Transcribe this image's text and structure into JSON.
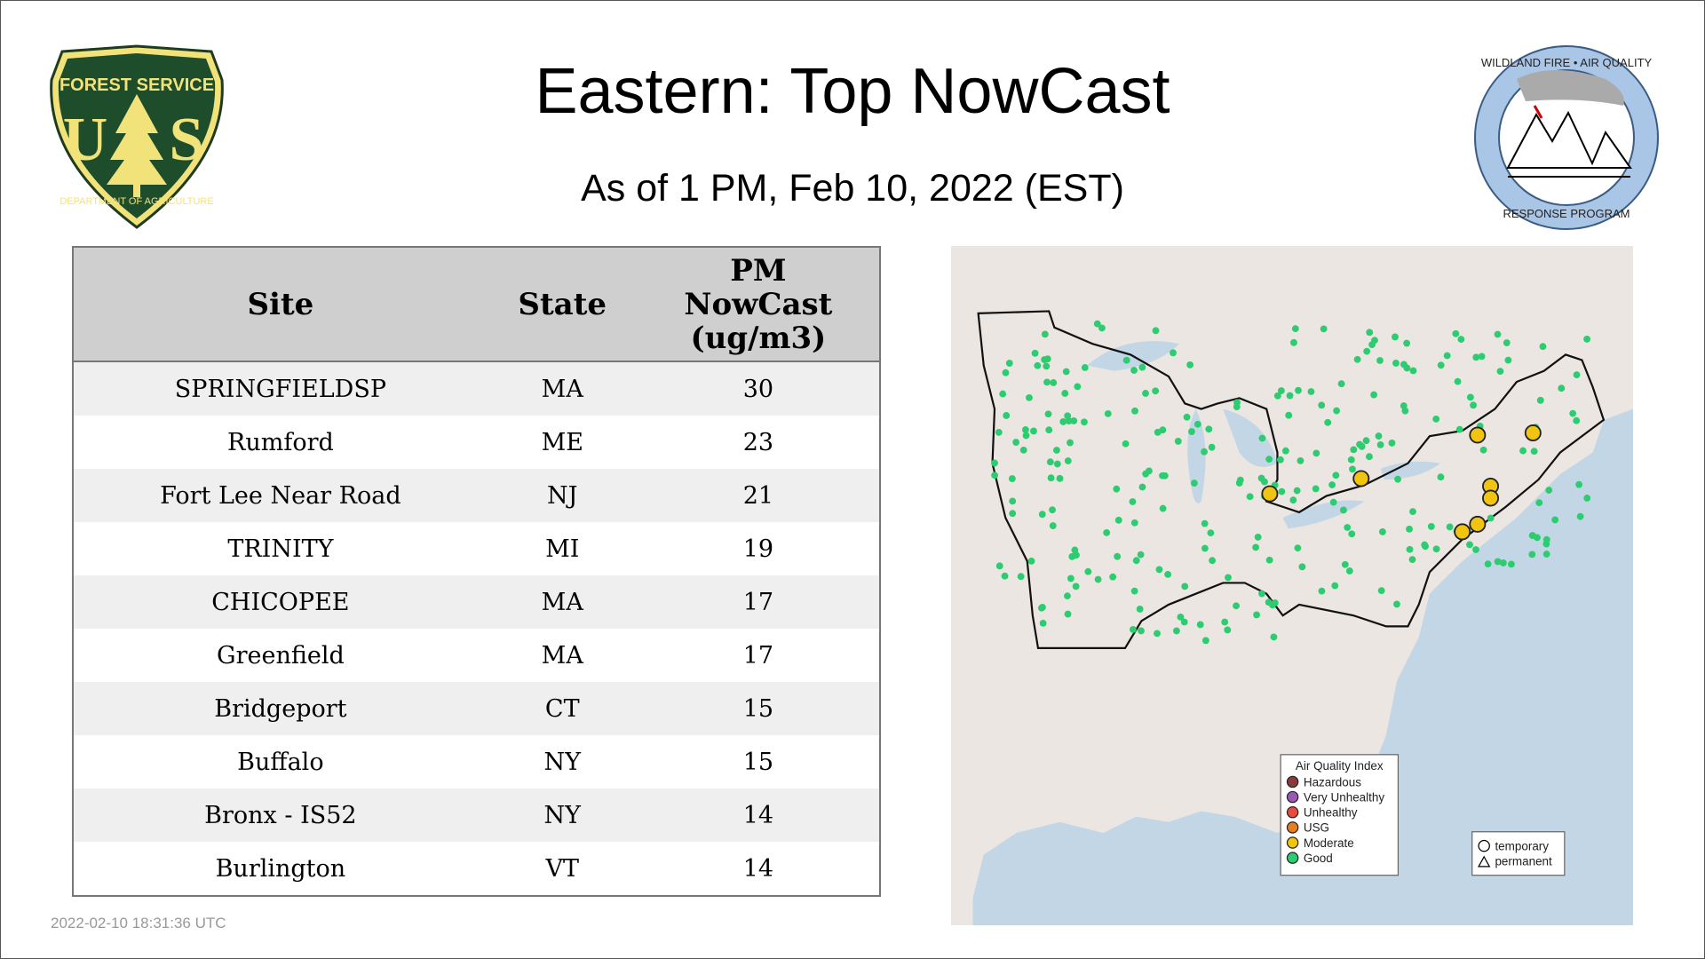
{
  "header": {
    "title": "Eastern: Top NowCast",
    "subtitle": "As of  1 PM, Feb 10, 2022 (EST)"
  },
  "logos": {
    "left": {
      "text_top": "FOREST SERVICE",
      "letters": "US",
      "text_bottom": "DEPARTMENT OF AGRICULTURE"
    },
    "right": {
      "text_top": "WILDLAND FIRE • AIR QUALITY",
      "text_bottom": "RESPONSE PROGRAM"
    }
  },
  "table": {
    "columns": [
      "Site",
      "State",
      "PM NowCast (ug/m3)"
    ],
    "rows": [
      {
        "site": "SPRINGFIELDSP",
        "state": "MA",
        "value": "30"
      },
      {
        "site": "Rumford",
        "state": "ME",
        "value": "23"
      },
      {
        "site": "Fort Lee Near Road",
        "state": "NJ",
        "value": "21"
      },
      {
        "site": "TRINITY",
        "state": "MI",
        "value": "19"
      },
      {
        "site": "CHICOPEE",
        "state": "MA",
        "value": "17"
      },
      {
        "site": "Greenfield",
        "state": "MA",
        "value": "17"
      },
      {
        "site": "Bridgeport",
        "state": "CT",
        "value": "15"
      },
      {
        "site": "Buffalo",
        "state": "NY",
        "value": "15"
      },
      {
        "site": "Bronx - IS52",
        "state": "NY",
        "value": "14"
      },
      {
        "site": "Burlington",
        "state": "VT",
        "value": "14"
      }
    ]
  },
  "map": {
    "legend_title": "Air Quality Index",
    "legend": [
      {
        "label": "Hazardous",
        "color": "#8b3a3a"
      },
      {
        "label": "Very Unhealthy",
        "color": "#9b59b6"
      },
      {
        "label": "Unhealthy",
        "color": "#e74c3c"
      },
      {
        "label": "USG",
        "color": "#e67e22"
      },
      {
        "label": "Moderate",
        "color": "#f1c40f"
      },
      {
        "label": "Good",
        "color": "#2ecc71"
      }
    ],
    "shape_legend": [
      "temporary",
      "permanent"
    ],
    "colors": {
      "land": "#ebe6e2",
      "water": "#c3d6e6",
      "good": "#2ecc71",
      "moderate": "#f1c40f"
    }
  },
  "footer": {
    "timestamp": "2022-02-10 18:31:36 UTC"
  }
}
